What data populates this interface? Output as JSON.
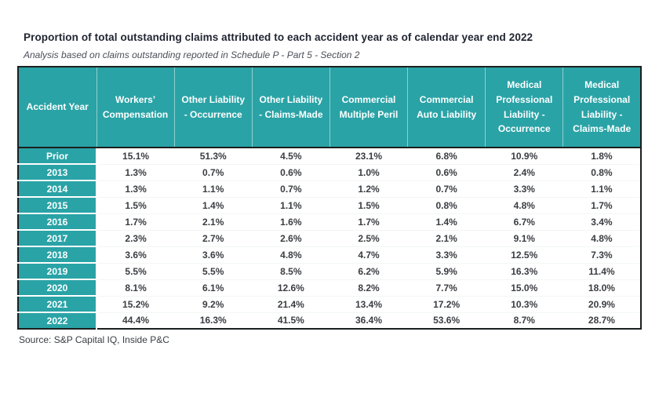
{
  "page": {
    "title": "Proportion of total outstanding claims attributed to each accident year as of calendar year end 2022",
    "subtitle": "Analysis based on claims outstanding reported in Schedule P - Part 5 - Section 2",
    "source": "Source: S&P Capital IQ, Inside P&C"
  },
  "colors": {
    "header_fill": "#2aa3a6",
    "header_text": "#ffffff",
    "outer_border": "#1b1f1f",
    "body_text": "#3a3d42"
  },
  "chart_data": {
    "type": "table",
    "title": "Proportion of total outstanding claims attributed to each accident year as of calendar year end 2022",
    "columns": [
      "Accident Year",
      "Workers’ Compensation",
      "Other Liability - Occurrence",
      "Other Liability - Claims-Made",
      "Commercial Multiple Peril",
      "Commercial Auto Liability",
      "Medical Professional Liability - Occurrence",
      "Medical Professional Liability - Claims-Made"
    ],
    "rows": [
      {
        "year": "Prior",
        "values": [
          "15.1%",
          "51.3%",
          "4.5%",
          "23.1%",
          "6.8%",
          "10.9%",
          "1.8%"
        ]
      },
      {
        "year": "2013",
        "values": [
          "1.3%",
          "0.7%",
          "0.6%",
          "1.0%",
          "0.6%",
          "2.4%",
          "0.8%"
        ]
      },
      {
        "year": "2014",
        "values": [
          "1.3%",
          "1.1%",
          "0.7%",
          "1.2%",
          "0.7%",
          "3.3%",
          "1.1%"
        ]
      },
      {
        "year": "2015",
        "values": [
          "1.5%",
          "1.4%",
          "1.1%",
          "1.5%",
          "0.8%",
          "4.8%",
          "1.7%"
        ]
      },
      {
        "year": "2016",
        "values": [
          "1.7%",
          "2.1%",
          "1.6%",
          "1.7%",
          "1.4%",
          "6.7%",
          "3.4%"
        ]
      },
      {
        "year": "2017",
        "values": [
          "2.3%",
          "2.7%",
          "2.6%",
          "2.5%",
          "2.1%",
          "9.1%",
          "4.8%"
        ]
      },
      {
        "year": "2018",
        "values": [
          "3.6%",
          "3.6%",
          "4.8%",
          "4.7%",
          "3.3%",
          "12.5%",
          "7.3%"
        ]
      },
      {
        "year": "2019",
        "values": [
          "5.5%",
          "5.5%",
          "8.5%",
          "6.2%",
          "5.9%",
          "16.3%",
          "11.4%"
        ]
      },
      {
        "year": "2020",
        "values": [
          "8.1%",
          "6.1%",
          "12.6%",
          "8.2%",
          "7.7%",
          "15.0%",
          "18.0%"
        ]
      },
      {
        "year": "2021",
        "values": [
          "15.2%",
          "9.2%",
          "21.4%",
          "13.4%",
          "17.2%",
          "10.3%",
          "20.9%"
        ]
      },
      {
        "year": "2022",
        "values": [
          "44.4%",
          "16.3%",
          "41.5%",
          "36.4%",
          "53.6%",
          "8.7%",
          "28.7%"
        ]
      }
    ]
  }
}
